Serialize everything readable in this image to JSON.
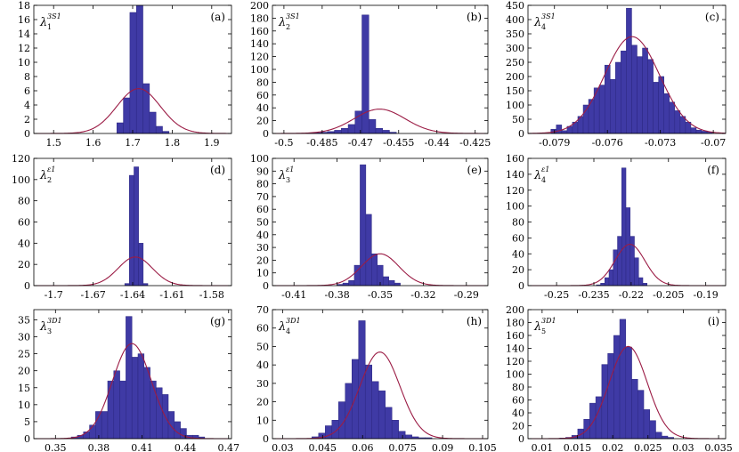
{
  "chart_data": [
    {
      "type": "bar",
      "label": "(a)",
      "param_base": "λ",
      "param_sub": "1",
      "param_sup": "3S1",
      "xlim": [
        1.45,
        1.95
      ],
      "ylim": [
        0,
        18
      ],
      "xticks": [
        1.5,
        1.6,
        1.7,
        1.8,
        1.9
      ],
      "xtick_labels": [
        "1.5",
        "1.6",
        "1.7",
        "1.8",
        "1.9"
      ],
      "yticks": [
        0,
        2,
        4,
        6,
        8,
        10,
        12,
        14,
        16,
        18
      ],
      "ytick_labels": [
        "0",
        "2",
        "4",
        "6",
        "8",
        "10",
        "12",
        "14",
        "16",
        "18"
      ],
      "bin_start": 1.66,
      "bin_width": 0.0165,
      "values": [
        1.5,
        5,
        17,
        19,
        7,
        3,
        1,
        0.3
      ],
      "fit": {
        "mean": 1.715,
        "sd": 0.055,
        "peak": 6.3
      }
    },
    {
      "type": "bar",
      "label": "(b)",
      "param_base": "λ",
      "param_sub": "2",
      "param_sup": "3S1",
      "xlim": [
        -0.5045,
        -0.42
      ],
      "ylim": [
        0,
        200
      ],
      "xticks": [
        -0.5,
        -0.485,
        -0.47,
        -0.455,
        -0.44,
        -0.425
      ],
      "xtick_labels": [
        "-0.5",
        "-0.485",
        "-0.47",
        "-0.455",
        "-0.44",
        "-0.425"
      ],
      "yticks": [
        0,
        20,
        40,
        60,
        80,
        100,
        120,
        140,
        160,
        180,
        200
      ],
      "ytick_labels": [
        "0",
        "20",
        "40",
        "60",
        "80",
        "100",
        "120",
        "140",
        "160",
        "180",
        "200"
      ],
      "bin_start": -0.491,
      "bin_width": 0.0027,
      "values": [
        1,
        1,
        2,
        3,
        5,
        8,
        14,
        35,
        185,
        22,
        8,
        5,
        2
      ],
      "fit": {
        "mean": -0.4625,
        "sd": 0.01,
        "peak": 38
      }
    },
    {
      "type": "bar",
      "label": "(c)",
      "param_base": "λ",
      "param_sub": "4",
      "param_sup": "3S1",
      "xlim": [
        -0.0805,
        -0.0693
      ],
      "ylim": [
        0,
        450
      ],
      "xticks": [
        -0.079,
        -0.076,
        -0.073,
        -0.07
      ],
      "xtick_labels": [
        "-0.079",
        "-0.076",
        "-0.073",
        "-0.07"
      ],
      "yticks": [
        0,
        50,
        100,
        150,
        200,
        250,
        300,
        350,
        400,
        450
      ],
      "ytick_labels": [
        "0",
        "50",
        "100",
        "150",
        "200",
        "250",
        "300",
        "350",
        "400",
        "450"
      ],
      "bin_start": -0.0792,
      "bin_width": 0.000305,
      "values": [
        15,
        30,
        10,
        25,
        40,
        60,
        100,
        120,
        160,
        170,
        240,
        190,
        250,
        290,
        440,
        310,
        270,
        300,
        260,
        180,
        200,
        140,
        110,
        80,
        60,
        40,
        20,
        12,
        8,
        5
      ],
      "fit": {
        "mean": -0.0746,
        "sd": 0.00155,
        "peak": 340
      }
    },
    {
      "type": "bar",
      "label": "(d)",
      "param_base": "λ",
      "param_sub": "2",
      "param_sup": "ε1",
      "xlim": [
        -1.715,
        -1.565
      ],
      "ylim": [
        0,
        120
      ],
      "xticks": [
        -1.7,
        -1.67,
        -1.64,
        -1.61,
        -1.58
      ],
      "xtick_labels": [
        "-1.7",
        "-1.67",
        "-1.64",
        "-1.61",
        "-1.58"
      ],
      "yticks": [
        0,
        20,
        40,
        60,
        80,
        100,
        120
      ],
      "ytick_labels": [
        "0",
        "20",
        "40",
        "60",
        "80",
        "100",
        "120"
      ],
      "bin_start": -1.646,
      "bin_width": 0.0035,
      "values": [
        2,
        104,
        112,
        40,
        2
      ],
      "fit": {
        "mean": -1.638,
        "sd": 0.013,
        "peak": 27
      }
    },
    {
      "type": "bar",
      "label": "(e)",
      "param_base": "λ",
      "param_sub": "3",
      "param_sup": "ε1",
      "xlim": [
        -0.425,
        -0.275
      ],
      "ylim": [
        0,
        100
      ],
      "xticks": [
        -0.41,
        -0.38,
        -0.35,
        -0.32,
        -0.29
      ],
      "xtick_labels": [
        "-0.41",
        "-0.38",
        "-0.35",
        "-0.32",
        "-0.29"
      ],
      "yticks": [
        0,
        10,
        20,
        30,
        40,
        50,
        60,
        70,
        80,
        90,
        100
      ],
      "ytick_labels": [
        "0",
        "10",
        "20",
        "30",
        "40",
        "50",
        "60",
        "70",
        "80",
        "90",
        "100"
      ],
      "bin_start": -0.38,
      "bin_width": 0.004,
      "values": [
        1,
        2,
        4,
        16,
        95,
        56,
        25,
        16,
        7,
        4,
        2
      ],
      "fit": {
        "mean": -0.35,
        "sd": 0.013,
        "peak": 25
      }
    },
    {
      "type": "bar",
      "label": "(f)",
      "param_base": "λ",
      "param_sub": "4",
      "param_sup": "ε1",
      "xlim": [
        -0.2615,
        -0.182
      ],
      "ylim": [
        0,
        160
      ],
      "xticks": [
        -0.25,
        -0.235,
        -0.22,
        -0.205,
        -0.19
      ],
      "xtick_labels": [
        "-0.25",
        "-0.235",
        "-0.22",
        "-0.205",
        "-0.19"
      ],
      "yticks": [
        0,
        20,
        40,
        60,
        80,
        100,
        120,
        140,
        160
      ],
      "ytick_labels": [
        "0",
        "20",
        "40",
        "60",
        "80",
        "100",
        "120",
        "140",
        "160"
      ],
      "bin_start": -0.234,
      "bin_width": 0.0017,
      "values": [
        1,
        3,
        10,
        20,
        45,
        62,
        148,
        98,
        62,
        35,
        10,
        3
      ],
      "fit": {
        "mean": -0.2205,
        "sd": 0.006,
        "peak": 52
      }
    },
    {
      "type": "bar",
      "label": "(g)",
      "param_base": "λ",
      "param_sub": "3",
      "param_sup": "3D1",
      "xlim": [
        0.335,
        0.472
      ],
      "ylim": [
        0,
        38
      ],
      "xticks": [
        0.35,
        0.38,
        0.41,
        0.44,
        0.47
      ],
      "xtick_labels": [
        "0.35",
        "0.38",
        "0.41",
        "0.44",
        "0.47"
      ],
      "yticks": [
        0,
        5,
        10,
        15,
        20,
        25,
        30,
        35
      ],
      "ytick_labels": [
        "0",
        "5",
        "10",
        "15",
        "20",
        "25",
        "30",
        "35"
      ],
      "bin_start": 0.361,
      "bin_width": 0.0042,
      "values": [
        0.5,
        1,
        2,
        4,
        8,
        8,
        17,
        20,
        17,
        36,
        24,
        25,
        21,
        17,
        15,
        13,
        8,
        5,
        3,
        1,
        1,
        0.5
      ],
      "fit": {
        "mean": 0.403,
        "sd": 0.0135,
        "peak": 28
      }
    },
    {
      "type": "bar",
      "label": "(h)",
      "param_base": "λ",
      "param_sub": "4",
      "param_sup": "3D1",
      "xlim": [
        0.0262,
        0.107
      ],
      "ylim": [
        0,
        70
      ],
      "xticks": [
        0.03,
        0.045,
        0.06,
        0.075,
        0.09,
        0.105
      ],
      "xtick_labels": [
        "0.03",
        "0.045",
        "0.06",
        "0.075",
        "0.09",
        "0.105"
      ],
      "yticks": [
        0,
        10,
        20,
        30,
        40,
        50,
        60,
        70
      ],
      "ytick_labels": [
        "0",
        "10",
        "20",
        "30",
        "40",
        "50",
        "60",
        "70"
      ],
      "bin_start": 0.041,
      "bin_width": 0.0025,
      "values": [
        1,
        3,
        7,
        10,
        20,
        30,
        43,
        64,
        40,
        31,
        26,
        17,
        10,
        4,
        2,
        1,
        0.5,
        0.5
      ],
      "fit": {
        "mean": 0.0665,
        "sd": 0.0075,
        "peak": 47
      }
    },
    {
      "type": "bar",
      "label": "(i)",
      "param_base": "λ",
      "param_sub": "5",
      "param_sup": "3D1",
      "xlim": [
        0.008,
        0.036
      ],
      "ylim": [
        0,
        200
      ],
      "xticks": [
        0.01,
        0.015,
        0.02,
        0.025,
        0.03,
        0.035
      ],
      "xtick_labels": [
        "0.01",
        "0.015",
        "0.02",
        "0.025",
        "0.03",
        "0.035"
      ],
      "yticks": [
        0,
        20,
        40,
        60,
        80,
        100,
        120,
        140,
        160,
        180,
        200
      ],
      "ytick_labels": [
        "0",
        "20",
        "40",
        "60",
        "80",
        "100",
        "120",
        "140",
        "160",
        "180",
        "200"
      ],
      "bin_start": 0.0125,
      "bin_width": 0.00085,
      "values": [
        1,
        2,
        5,
        15,
        30,
        55,
        65,
        115,
        132,
        160,
        185,
        142,
        92,
        75,
        45,
        28,
        10,
        4,
        2
      ],
      "fit": {
        "mean": 0.0222,
        "sd": 0.0027,
        "peak": 143
      }
    }
  ],
  "colors": {
    "bar": "#3f3aa5",
    "bar_edge": "#2b2780",
    "fit": "#9b1c45"
  }
}
